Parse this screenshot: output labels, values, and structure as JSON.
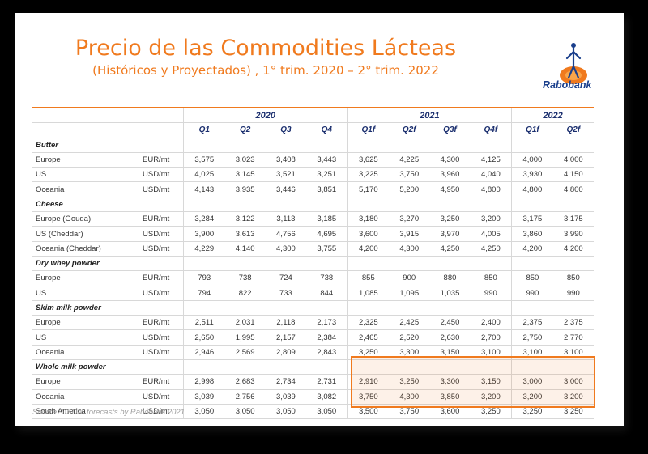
{
  "title": "Precio de las Commodities Lácteas",
  "subtitle": "(Históricos y Proyectados) , 1° trim. 2020 – 2° trim. 2022",
  "logo_text": "Rabobank",
  "years": [
    "2020",
    "2021",
    "2022"
  ],
  "quarters": [
    "Q1",
    "Q2",
    "Q3",
    "Q4",
    "Q1f",
    "Q2f",
    "Q3f",
    "Q4f",
    "Q1f",
    "Q2f"
  ],
  "sections": [
    {
      "name": "Butter",
      "rows": [
        {
          "label": "Europe",
          "unit": "EUR/mt",
          "values": [
            "3,575",
            "3,023",
            "3,408",
            "3,443",
            "3,625",
            "4,225",
            "4,300",
            "4,125",
            "4,000",
            "4,000"
          ]
        },
        {
          "label": "US",
          "unit": "USD/mt",
          "values": [
            "4,025",
            "3,145",
            "3,521",
            "3,251",
            "3,225",
            "3,750",
            "3,960",
            "4,040",
            "3,930",
            "4,150"
          ]
        },
        {
          "label": "Oceania",
          "unit": "USD/mt",
          "values": [
            "4,143",
            "3,935",
            "3,446",
            "3,851",
            "5,170",
            "5,200",
            "4,950",
            "4,800",
            "4,800",
            "4,800"
          ]
        }
      ]
    },
    {
      "name": "Cheese",
      "rows": [
        {
          "label": "Europe (Gouda)",
          "unit": "EUR/mt",
          "values": [
            "3,284",
            "3,122",
            "3,113",
            "3,185",
            "3,180",
            "3,270",
            "3,250",
            "3,200",
            "3,175",
            "3,175"
          ]
        },
        {
          "label": "US (Cheddar)",
          "unit": "USD/mt",
          "values": [
            "3,900",
            "3,613",
            "4,756",
            "4,695",
            "3,600",
            "3,915",
            "3,970",
            "4,005",
            "3,860",
            "3,990"
          ]
        },
        {
          "label": "Oceania (Cheddar)",
          "unit": "USD/mt",
          "values": [
            "4,229",
            "4,140",
            "4,300",
            "3,755",
            "4,200",
            "4,300",
            "4,250",
            "4,250",
            "4,200",
            "4,200"
          ]
        }
      ]
    },
    {
      "name": "Dry whey powder",
      "rows": [
        {
          "label": "Europe",
          "unit": "EUR/mt",
          "values": [
            "793",
            "738",
            "724",
            "738",
            "855",
            "900",
            "880",
            "850",
            "850",
            "850"
          ]
        },
        {
          "label": "US",
          "unit": "USD/mt",
          "values": [
            "794",
            "822",
            "733",
            "844",
            "1,085",
            "1,095",
            "1,035",
            "990",
            "990",
            "990"
          ]
        }
      ]
    },
    {
      "name": "Skim milk powder",
      "rows": [
        {
          "label": "Europe",
          "unit": "EUR/mt",
          "values": [
            "2,511",
            "2,031",
            "2,118",
            "2,173",
            "2,325",
            "2,425",
            "2,450",
            "2,400",
            "2,375",
            "2,375"
          ]
        },
        {
          "label": "US",
          "unit": "USD/mt",
          "values": [
            "2,650",
            "1,995",
            "2,157",
            "2,384",
            "2,465",
            "2,520",
            "2,630",
            "2,700",
            "2,750",
            "2,770"
          ]
        },
        {
          "label": "Oceania",
          "unit": "USD/mt",
          "values": [
            "2,946",
            "2,569",
            "2,809",
            "2,843",
            "3,250",
            "3,300",
            "3,150",
            "3,100",
            "3,100",
            "3,100"
          ]
        }
      ]
    },
    {
      "name": "Whole milk powder",
      "rows": [
        {
          "label": "Europe",
          "unit": "EUR/mt",
          "values": [
            "2,998",
            "2,683",
            "2,734",
            "2,731",
            "2,910",
            "3,250",
            "3,300",
            "3,150",
            "3,000",
            "3,000"
          ]
        },
        {
          "label": "Oceania",
          "unit": "USD/mt",
          "values": [
            "3,039",
            "2,756",
            "3,039",
            "3,082",
            "3,750",
            "4,300",
            "3,850",
            "3,200",
            "3,200",
            "3,200"
          ]
        },
        {
          "label": "South America",
          "unit": "USD/mt",
          "values": [
            "3,050",
            "3,050",
            "3,050",
            "3,050",
            "3,500",
            "3,750",
            "3,600",
            "3,250",
            "3,250",
            "3,250"
          ]
        }
      ]
    }
  ],
  "source": "Source: USDA, forecasts by Rabobank 2021",
  "colors": {
    "accent": "#f07a1e",
    "header_text": "#1a2e6e",
    "brand_blue": "#1a3f8c"
  }
}
